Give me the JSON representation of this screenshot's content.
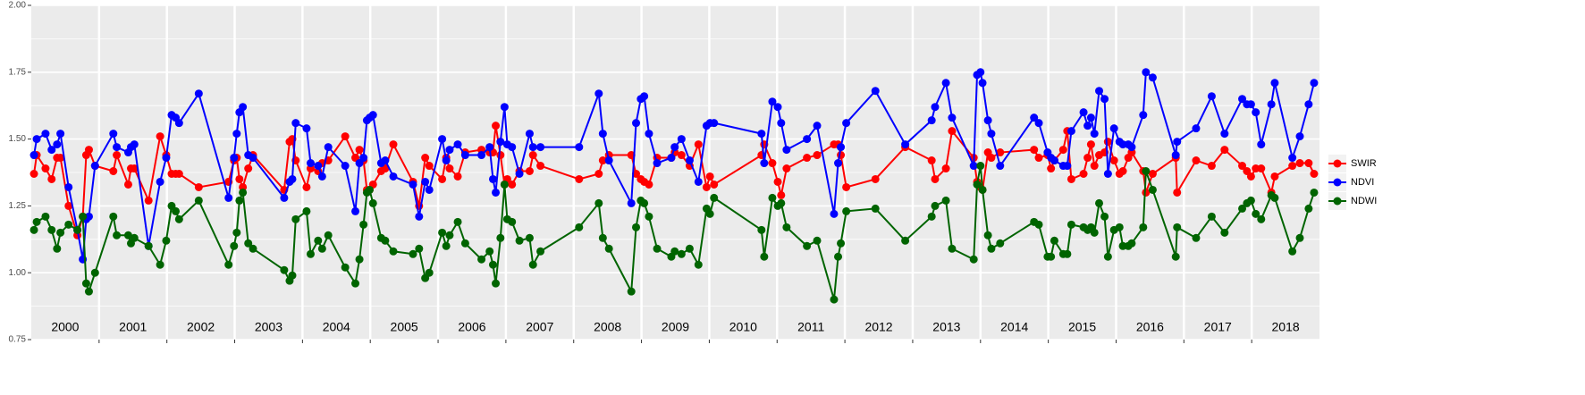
{
  "chart_data": {
    "type": "line",
    "x": [
      2000.04,
      2000.08,
      2000.21,
      2000.3,
      2000.38,
      2000.43,
      2000.55,
      2000.68,
      2000.76,
      2000.81,
      2000.85,
      2000.94,
      2001.21,
      2001.26,
      2001.43,
      2001.47,
      2001.52,
      2001.73,
      2001.9,
      2001.99,
      2002.07,
      2002.13,
      2002.18,
      2002.47,
      2002.91,
      2002.99,
      2003.03,
      2003.07,
      2003.12,
      2003.2,
      2003.27,
      2003.73,
      2003.81,
      2003.85,
      2003.9,
      2004.06,
      2004.12,
      2004.23,
      2004.29,
      2004.38,
      2004.63,
      2004.78,
      2004.84,
      2004.9,
      2004.95,
      2004.99,
      2005.04,
      2005.16,
      2005.22,
      2005.34,
      2005.63,
      2005.72,
      2005.81,
      2005.87,
      2006.06,
      2006.12,
      2006.17,
      2006.29,
      2006.4,
      2006.64,
      2006.76,
      2006.81,
      2006.85,
      2006.92,
      2006.98,
      2007.02,
      2007.09,
      2007.2,
      2007.35,
      2007.4,
      2007.51,
      2008.08,
      2008.37,
      2008.43,
      2008.52,
      2008.85,
      2008.92,
      2008.99,
      2009.04,
      2009.11,
      2009.23,
      2009.44,
      2009.49,
      2009.59,
      2009.71,
      2009.84,
      2009.96,
      2010.01,
      2010.07,
      2010.77,
      2010.81,
      2010.93,
      2011.01,
      2011.06,
      2011.14,
      2011.44,
      2011.59,
      2011.84,
      2011.9,
      2011.94,
      2012.02,
      2012.45,
      2012.89,
      2013.28,
      2013.33,
      2013.49,
      2013.58,
      2013.9,
      2013.95,
      2014.0,
      2014.03,
      2014.11,
      2014.16,
      2014.29,
      2014.79,
      2014.86,
      2014.99,
      2015.04,
      2015.09,
      2015.22,
      2015.28,
      2015.34,
      2015.52,
      2015.58,
      2015.63,
      2015.68,
      2015.75,
      2015.83,
      2015.88,
      2015.97,
      2016.05,
      2016.1,
      2016.18,
      2016.23,
      2016.4,
      2016.44,
      2016.54,
      2016.88,
      2016.9,
      2017.18,
      2017.41,
      2017.6,
      2017.86,
      2017.93,
      2017.99,
      2018.06,
      2018.14,
      2018.29,
      2018.34,
      2018.6,
      2018.71,
      2018.84,
      2018.92
    ],
    "series": [
      {
        "name": "SWIR",
        "color": "#ff0000",
        "values": [
          1.37,
          1.44,
          1.39,
          1.35,
          1.43,
          1.43,
          1.25,
          1.14,
          1.21,
          1.44,
          1.46,
          1.4,
          1.38,
          1.44,
          1.33,
          1.39,
          1.39,
          1.27,
          1.51,
          1.44,
          1.37,
          1.37,
          1.37,
          1.32,
          1.34,
          1.42,
          1.43,
          1.35,
          1.32,
          1.39,
          1.44,
          1.31,
          1.49,
          1.5,
          1.42,
          1.32,
          1.39,
          1.38,
          1.41,
          1.42,
          1.51,
          1.43,
          1.46,
          1.42,
          1.31,
          1.31,
          1.33,
          1.38,
          1.39,
          1.48,
          1.34,
          1.25,
          1.43,
          1.4,
          1.35,
          1.43,
          1.39,
          1.36,
          1.45,
          1.46,
          1.45,
          1.45,
          1.55,
          1.44,
          1.33,
          1.35,
          1.33,
          1.38,
          1.38,
          1.44,
          1.4,
          1.35,
          1.37,
          1.42,
          1.44,
          1.44,
          1.37,
          1.35,
          1.34,
          1.33,
          1.43,
          1.43,
          1.45,
          1.44,
          1.4,
          1.48,
          1.32,
          1.36,
          1.33,
          1.44,
          1.48,
          1.41,
          1.34,
          1.29,
          1.39,
          1.43,
          1.44,
          1.48,
          1.48,
          1.44,
          1.32,
          1.35,
          1.47,
          1.42,
          1.35,
          1.39,
          1.53,
          1.43,
          1.34,
          1.32,
          1.31,
          1.45,
          1.43,
          1.45,
          1.46,
          1.43,
          1.44,
          1.39,
          1.42,
          1.46,
          1.53,
          1.35,
          1.37,
          1.43,
          1.48,
          1.4,
          1.44,
          1.45,
          1.49,
          1.42,
          1.37,
          1.38,
          1.43,
          1.45,
          1.38,
          1.3,
          1.37,
          1.43,
          1.3,
          1.42,
          1.4,
          1.46,
          1.4,
          1.38,
          1.36,
          1.39,
          1.39,
          1.3,
          1.36,
          1.4,
          1.41,
          1.41,
          1.37
        ]
      },
      {
        "name": "NDVI",
        "color": "#0000ff",
        "values": [
          1.44,
          1.5,
          1.52,
          1.46,
          1.48,
          1.52,
          1.32,
          1.16,
          1.05,
          1.2,
          1.21,
          1.4,
          1.52,
          1.47,
          1.45,
          1.47,
          1.48,
          1.1,
          1.34,
          1.43,
          1.59,
          1.58,
          1.56,
          1.67,
          1.28,
          1.43,
          1.52,
          1.6,
          1.62,
          1.44,
          1.43,
          1.28,
          1.34,
          1.35,
          1.56,
          1.54,
          1.41,
          1.4,
          1.36,
          1.47,
          1.4,
          1.23,
          1.41,
          1.43,
          1.57,
          1.58,
          1.59,
          1.41,
          1.42,
          1.36,
          1.33,
          1.21,
          1.34,
          1.31,
          1.5,
          1.42,
          1.46,
          1.48,
          1.44,
          1.44,
          1.47,
          1.35,
          1.3,
          1.49,
          1.62,
          1.48,
          1.47,
          1.37,
          1.52,
          1.47,
          1.47,
          1.47,
          1.67,
          1.52,
          1.42,
          1.26,
          1.56,
          1.65,
          1.66,
          1.52,
          1.41,
          1.43,
          1.47,
          1.5,
          1.42,
          1.34,
          1.55,
          1.56,
          1.56,
          1.52,
          1.41,
          1.64,
          1.62,
          1.56,
          1.46,
          1.5,
          1.55,
          1.22,
          1.41,
          1.47,
          1.56,
          1.68,
          1.48,
          1.57,
          1.62,
          1.71,
          1.58,
          1.4,
          1.74,
          1.75,
          1.71,
          1.57,
          1.52,
          1.4,
          1.58,
          1.56,
          1.45,
          1.43,
          1.42,
          1.4,
          1.4,
          1.53,
          1.6,
          1.55,
          1.58,
          1.52,
          1.68,
          1.65,
          1.37,
          1.54,
          1.49,
          1.48,
          1.48,
          1.47,
          1.59,
          1.75,
          1.73,
          1.44,
          1.49,
          1.54,
          1.66,
          1.52,
          1.65,
          1.63,
          1.63,
          1.6,
          1.48,
          1.63,
          1.71,
          1.43,
          1.51,
          1.63,
          1.71
        ]
      },
      {
        "name": "NDWI",
        "color": "#006400",
        "values": [
          1.16,
          1.19,
          1.21,
          1.16,
          1.09,
          1.15,
          1.18,
          1.16,
          1.21,
          0.96,
          0.93,
          1.0,
          1.21,
          1.14,
          1.14,
          1.11,
          1.13,
          1.1,
          1.03,
          1.12,
          1.25,
          1.23,
          1.2,
          1.27,
          1.03,
          1.1,
          1.15,
          1.27,
          1.3,
          1.11,
          1.09,
          1.01,
          0.97,
          0.99,
          1.2,
          1.23,
          1.07,
          1.12,
          1.09,
          1.14,
          1.02,
          0.96,
          1.05,
          1.18,
          1.3,
          1.31,
          1.26,
          1.13,
          1.12,
          1.08,
          1.07,
          1.09,
          0.98,
          1.0,
          1.15,
          1.1,
          1.14,
          1.19,
          1.11,
          1.05,
          1.08,
          1.03,
          0.96,
          1.13,
          1.33,
          1.2,
          1.19,
          1.12,
          1.13,
          1.03,
          1.08,
          1.17,
          1.26,
          1.13,
          1.09,
          0.93,
          1.17,
          1.27,
          1.26,
          1.21,
          1.09,
          1.06,
          1.08,
          1.07,
          1.09,
          1.03,
          1.24,
          1.22,
          1.28,
          1.16,
          1.06,
          1.28,
          1.25,
          1.26,
          1.17,
          1.1,
          1.12,
          0.9,
          1.06,
          1.11,
          1.23,
          1.24,
          1.12,
          1.21,
          1.25,
          1.27,
          1.09,
          1.05,
          1.33,
          1.4,
          1.31,
          1.14,
          1.09,
          1.11,
          1.19,
          1.18,
          1.06,
          1.06,
          1.12,
          1.07,
          1.07,
          1.18,
          1.17,
          1.16,
          1.17,
          1.15,
          1.26,
          1.21,
          1.06,
          1.16,
          1.17,
          1.1,
          1.1,
          1.11,
          1.17,
          1.38,
          1.31,
          1.06,
          1.17,
          1.13,
          1.21,
          1.15,
          1.24,
          1.26,
          1.27,
          1.22,
          1.2,
          1.29,
          1.28,
          1.08,
          1.13,
          1.24,
          1.3
        ]
      }
    ],
    "xlim": [
      2000,
      2019
    ],
    "xticks": [
      {
        "value": 2000.5,
        "label": "2000"
      },
      {
        "value": 2001.5,
        "label": "2001"
      },
      {
        "value": 2002.5,
        "label": "2002"
      },
      {
        "value": 2003.5,
        "label": "2003"
      },
      {
        "value": 2004.5,
        "label": "2004"
      },
      {
        "value": 2005.5,
        "label": "2005"
      },
      {
        "value": 2006.5,
        "label": "2006"
      },
      {
        "value": 2007.5,
        "label": "2007"
      },
      {
        "value": 2008.5,
        "label": "2008"
      },
      {
        "value": 2009.5,
        "label": "2009"
      },
      {
        "value": 2010.5,
        "label": "2010"
      },
      {
        "value": 2011.5,
        "label": "2011"
      },
      {
        "value": 2012.5,
        "label": "2012"
      },
      {
        "value": 2013.5,
        "label": "2013"
      },
      {
        "value": 2014.5,
        "label": "2014"
      },
      {
        "value": 2015.5,
        "label": "2015"
      },
      {
        "value": 2016.5,
        "label": "2016"
      },
      {
        "value": 2017.5,
        "label": "2017"
      },
      {
        "value": 2018.5,
        "label": "2018"
      }
    ],
    "xgrid": [
      2001,
      2002,
      2003,
      2004,
      2005,
      2006,
      2007,
      2008,
      2009,
      2010,
      2011,
      2012,
      2013,
      2014,
      2015,
      2016,
      2017,
      2018
    ],
    "ylim": [
      0.75,
      2.0
    ],
    "yticks": [
      {
        "value": 0.75,
        "label": "0.75"
      },
      {
        "value": 1.0,
        "label": "1.00"
      },
      {
        "value": 1.25,
        "label": "1.25"
      },
      {
        "value": 1.5,
        "label": "1.50"
      },
      {
        "value": 1.75,
        "label": "1.75"
      },
      {
        "value": 2.0,
        "label": "2.00"
      }
    ],
    "grid": true,
    "legend": "right"
  }
}
